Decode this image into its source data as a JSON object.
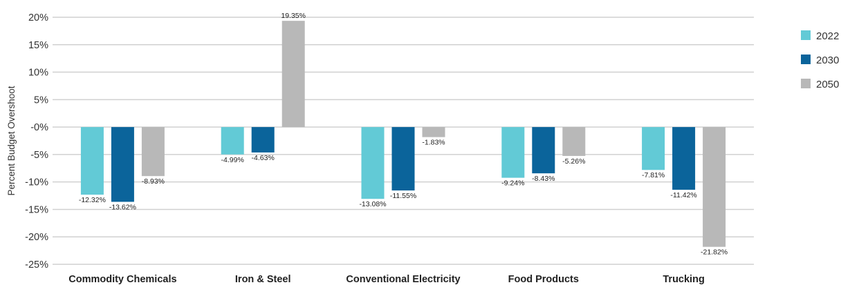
{
  "chart_data": {
    "type": "bar",
    "ylabel": "Percent Budget Overshoot",
    "ylim": [
      -25,
      20
    ],
    "yticks": [
      20,
      15,
      10,
      5,
      0,
      -5,
      -10,
      -15,
      -20,
      -25
    ],
    "ytick_labels": [
      "20%",
      "15%",
      "10%",
      "5%",
      "-0%",
      "-5%",
      "-10%",
      "-15%",
      "-20%",
      "-25%"
    ],
    "categories": [
      "Commodity Chemicals",
      "Iron & Steel",
      "Conventional Electricity",
      "Food Products",
      "Trucking"
    ],
    "series": [
      {
        "name": "2022",
        "color": "#62cad6",
        "values": [
          -12.32,
          -4.99,
          -13.08,
          -9.24,
          -7.81
        ],
        "labels": [
          "-12.32%",
          "-4.99%",
          "-13.08%",
          "-9.24%",
          "-7.81%"
        ]
      },
      {
        "name": "2030",
        "color": "#0b649b",
        "values": [
          -13.62,
          -4.63,
          -11.55,
          -8.43,
          -11.42
        ],
        "labels": [
          "-13.62%",
          "-4.63%",
          "-11.55%",
          "-8.43%",
          "-11.42%"
        ]
      },
      {
        "name": "2050",
        "color": "#b8b8b8",
        "values": [
          -8.93,
          19.35,
          -1.83,
          -5.26,
          -21.82
        ],
        "labels": [
          "-8.93%",
          "19.35%",
          "-1.83%",
          "-5.26%",
          "-21.82%"
        ]
      }
    ],
    "grid": true,
    "legend": "top-right"
  }
}
